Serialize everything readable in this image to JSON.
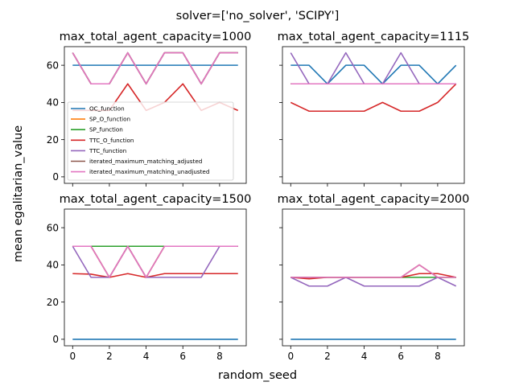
{
  "figure": {
    "suptitle": "solver=['no_solver', 'SCIPY']",
    "xlabel": "random_seed",
    "ylabel": "mean egalitarian_value"
  },
  "colors": {
    "OC_function": "#1f77b4",
    "SP_O_function": "#ff7f0e",
    "SP_function": "#2ca02c",
    "TTC_O_function": "#d62728",
    "TTC_function": "#9467bd",
    "iterated_maximum_matching_adjusted": "#8c564b",
    "iterated_maximum_matching_unadjusted": "#e377c2"
  },
  "chart_data": [
    {
      "type": "line",
      "title": "max_total_agent_capacity=1000",
      "xlim": [
        -0.45,
        9.45
      ],
      "ylim": [
        -3.5,
        70
      ],
      "xticks": [
        0,
        2,
        4,
        6,
        8
      ],
      "yticks": [
        0,
        20,
        40,
        60
      ],
      "show_xticklabels": false,
      "show_yticklabels": true,
      "legend": "lower-left",
      "x": [
        0,
        1,
        2,
        3,
        4,
        5,
        6,
        7,
        8,
        9
      ],
      "series": [
        {
          "name": "OC_function",
          "values": [
            60,
            60,
            60,
            60,
            60,
            60,
            60,
            60,
            60,
            60
          ]
        },
        {
          "name": "SP_O_function",
          "values": [
            66.7,
            50,
            50,
            66.7,
            50,
            66.7,
            66.7,
            50,
            66.7,
            66.7
          ]
        },
        {
          "name": "SP_function",
          "values": [
            66.7,
            50,
            50,
            66.7,
            50,
            66.7,
            66.7,
            50,
            66.7,
            66.7
          ]
        },
        {
          "name": "TTC_O_function",
          "values": [
            35.7,
            35.7,
            35.7,
            50,
            35.7,
            40,
            50,
            35.7,
            40,
            35.7
          ]
        },
        {
          "name": "TTC_function",
          "values": [
            66.7,
            50,
            50,
            66.7,
            50,
            66.7,
            66.7,
            50,
            66.7,
            66.7
          ]
        },
        {
          "name": "iterated_maximum_matching_adjusted",
          "values": [
            66.7,
            50,
            50,
            66.7,
            50,
            66.7,
            66.7,
            50,
            66.7,
            66.7
          ]
        },
        {
          "name": "iterated_maximum_matching_unadjusted",
          "values": [
            66.7,
            50,
            50,
            66.7,
            50,
            66.7,
            66.7,
            50,
            66.7,
            66.7
          ]
        }
      ]
    },
    {
      "type": "line",
      "title": "max_total_agent_capacity=1115",
      "xlim": [
        -0.45,
        9.45
      ],
      "ylim": [
        -3.5,
        70
      ],
      "xticks": [
        0,
        2,
        4,
        6,
        8
      ],
      "yticks": [
        0,
        20,
        40,
        60
      ],
      "show_xticklabels": false,
      "show_yticklabels": false,
      "x": [
        0,
        1,
        2,
        3,
        4,
        5,
        6,
        7,
        8,
        9
      ],
      "series": [
        {
          "name": "OC_function",
          "values": [
            60,
            60,
            50,
            60,
            60,
            50,
            60,
            60,
            50,
            60
          ]
        },
        {
          "name": "SP_O_function",
          "values": [
            50,
            50,
            50,
            50,
            50,
            50,
            50,
            50,
            50,
            50
          ]
        },
        {
          "name": "SP_function",
          "values": [
            50,
            50,
            50,
            50,
            50,
            50,
            50,
            50,
            50,
            50
          ]
        },
        {
          "name": "TTC_O_function",
          "values": [
            40,
            35.3,
            35.3,
            35.3,
            35.3,
            40,
            35.3,
            35.3,
            40,
            50
          ]
        },
        {
          "name": "TTC_function",
          "values": [
            66.7,
            50,
            50,
            66.7,
            50,
            50,
            66.7,
            50,
            50,
            50
          ]
        },
        {
          "name": "iterated_maximum_matching_adjusted",
          "values": [
            50,
            50,
            50,
            50,
            50,
            50,
            50,
            50,
            50,
            50
          ]
        },
        {
          "name": "iterated_maximum_matching_unadjusted",
          "values": [
            50,
            50,
            50,
            50,
            50,
            50,
            50,
            50,
            50,
            50
          ]
        }
      ]
    },
    {
      "type": "line",
      "title": "max_total_agent_capacity=1500",
      "xlim": [
        -0.45,
        9.45
      ],
      "ylim": [
        -3.5,
        70
      ],
      "xticks": [
        0,
        2,
        4,
        6,
        8
      ],
      "yticks": [
        0,
        20,
        40,
        60
      ],
      "show_xticklabels": true,
      "show_yticklabels": true,
      "x": [
        0,
        1,
        2,
        3,
        4,
        5,
        6,
        7,
        8,
        9
      ],
      "series": [
        {
          "name": "OC_function",
          "values": [
            0,
            0,
            0,
            0,
            0,
            0,
            0,
            0,
            0,
            0
          ]
        },
        {
          "name": "SP_O_function",
          "values": [
            50,
            50,
            33.3,
            50,
            33.3,
            50,
            50,
            50,
            50,
            50
          ]
        },
        {
          "name": "SP_function",
          "values": [
            50,
            50,
            50,
            50,
            50,
            50,
            50,
            50,
            50,
            50
          ]
        },
        {
          "name": "TTC_O_function",
          "values": [
            35.3,
            35,
            33.3,
            35.3,
            33.3,
            35.3,
            35.3,
            35.3,
            35.3,
            35.3
          ]
        },
        {
          "name": "TTC_function",
          "values": [
            50,
            33.3,
            33.3,
            50,
            33.3,
            33.3,
            33.3,
            33.3,
            50,
            50
          ]
        },
        {
          "name": "iterated_maximum_matching_adjusted",
          "values": [
            50,
            50,
            33.3,
            50,
            33.3,
            50,
            50,
            50,
            50,
            50
          ]
        },
        {
          "name": "iterated_maximum_matching_unadjusted",
          "values": [
            50,
            50,
            33.3,
            50,
            33.3,
            50,
            50,
            50,
            50,
            50
          ]
        }
      ]
    },
    {
      "type": "line",
      "title": "max_total_agent_capacity=2000",
      "xlim": [
        -0.45,
        9.45
      ],
      "ylim": [
        -3.5,
        70
      ],
      "xticks": [
        0,
        2,
        4,
        6,
        8
      ],
      "yticks": [
        0,
        20,
        40,
        60
      ],
      "show_xticklabels": true,
      "show_yticklabels": false,
      "x": [
        0,
        1,
        2,
        3,
        4,
        5,
        6,
        7,
        8,
        9
      ],
      "series": [
        {
          "name": "OC_function",
          "values": [
            0,
            0,
            0,
            0,
            0,
            0,
            0,
            0,
            0,
            0
          ]
        },
        {
          "name": "SP_O_function",
          "values": [
            33.3,
            33.3,
            33.3,
            33.3,
            33.3,
            33.3,
            33.3,
            40,
            33.3,
            33.3
          ]
        },
        {
          "name": "SP_function",
          "values": [
            33.3,
            33.3,
            33.3,
            33.3,
            33.3,
            33.3,
            33.3,
            33.3,
            33.3,
            33.3
          ]
        },
        {
          "name": "TTC_O_function",
          "values": [
            33.3,
            32.5,
            33.3,
            33.3,
            33.3,
            33.3,
            33.3,
            35.3,
            35.3,
            33.3
          ]
        },
        {
          "name": "TTC_function",
          "values": [
            33.3,
            28.6,
            28.6,
            33.3,
            28.6,
            28.6,
            28.6,
            28.6,
            33.3,
            28.6
          ]
        },
        {
          "name": "iterated_maximum_matching_adjusted",
          "values": [
            33.3,
            33.3,
            33.3,
            33.3,
            33.3,
            33.3,
            33.3,
            40,
            33.3,
            33.3
          ]
        },
        {
          "name": "iterated_maximum_matching_unadjusted",
          "values": [
            33.3,
            33.3,
            33.3,
            33.3,
            33.3,
            33.3,
            33.3,
            40,
            33.3,
            33.3
          ]
        }
      ]
    }
  ]
}
